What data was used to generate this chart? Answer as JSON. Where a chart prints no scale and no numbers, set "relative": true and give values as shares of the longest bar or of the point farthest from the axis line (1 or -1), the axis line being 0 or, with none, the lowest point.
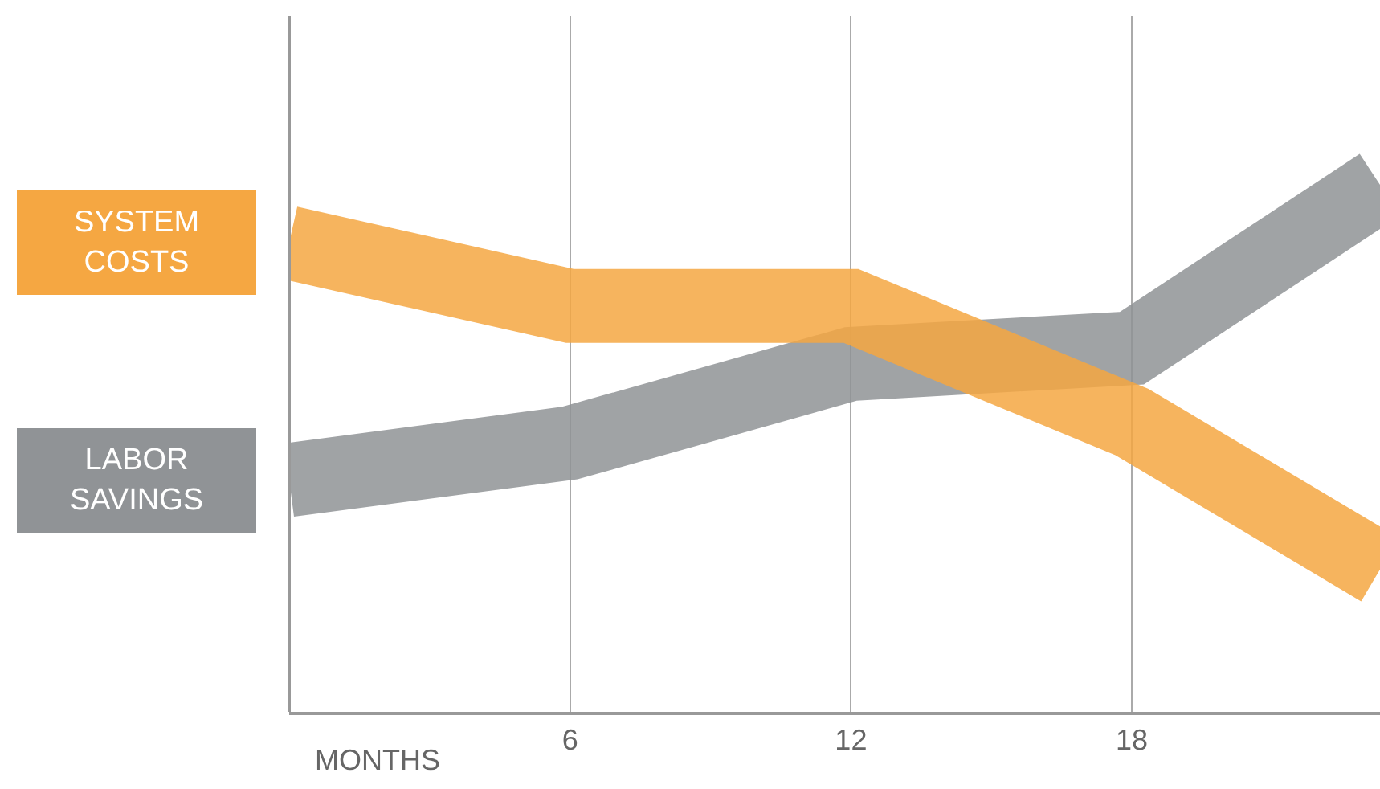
{
  "chart_data": {
    "type": "line",
    "relative": true,
    "xlabel": "MONTHS",
    "x": [
      0,
      6,
      12,
      18,
      23.3
    ],
    "xlim": [
      0,
      23.3
    ],
    "xticks": [
      6,
      12,
      18
    ],
    "grid": "x",
    "legend": false,
    "marker": "none",
    "line_style": "solid",
    "series": [
      {
        "name": "LABOR SAVINGS",
        "color": "#909396",
        "values": [
          0.44,
          0.51,
          0.66,
          0.69,
          1
        ]
      },
      {
        "name": "SYSTEM COSTS",
        "color": "#f5a742",
        "values": [
          0.89,
          0.77,
          0.77,
          0.55,
          0.27
        ]
      }
    ]
  }
}
